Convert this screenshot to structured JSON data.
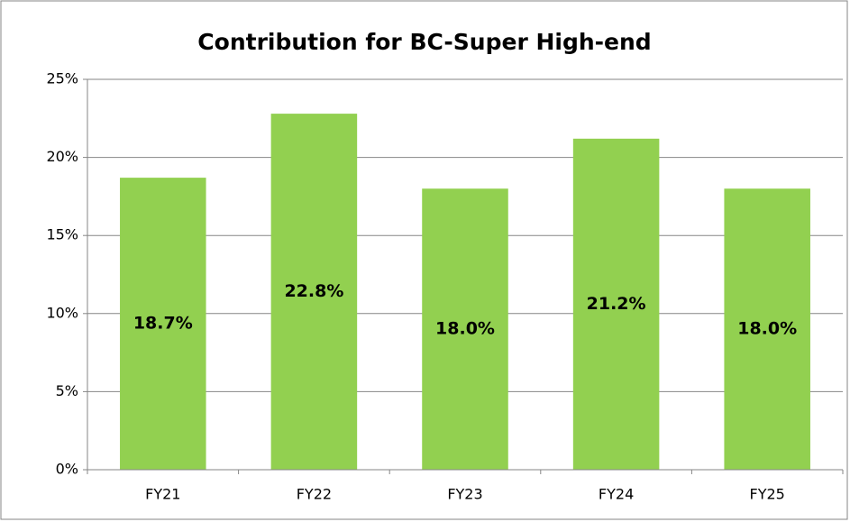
{
  "chart_data": {
    "type": "bar",
    "title": "Contribution for BC-Super High-end",
    "categories": [
      "FY21",
      "FY22",
      "FY23",
      "FY24",
      "FY25"
    ],
    "values": [
      18.7,
      22.8,
      18.0,
      21.2,
      18.0
    ],
    "value_labels": [
      "18.7%",
      "22.8%",
      "18.0%",
      "21.2%",
      "18.0%"
    ],
    "color": "#92d050",
    "ylim": [
      0,
      25
    ],
    "yticks": [
      {
        "value": 0,
        "label": "0%"
      },
      {
        "value": 5,
        "label": "5%"
      },
      {
        "value": 10,
        "label": "10%"
      },
      {
        "value": 15,
        "label": "15%"
      },
      {
        "value": 20,
        "label": "20%"
      },
      {
        "value": 25,
        "label": "25%"
      }
    ],
    "grid": true
  }
}
